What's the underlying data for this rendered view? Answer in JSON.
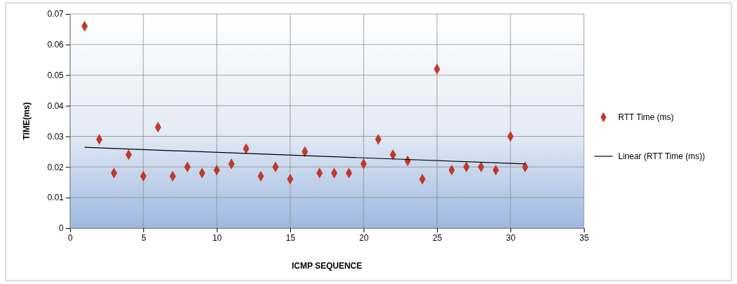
{
  "chart_data": {
    "type": "scatter",
    "xlabel": "ICMP SEQUENCE",
    "ylabel": "TIME(ms)",
    "xlim": [
      0,
      35
    ],
    "xticks": [
      0,
      5,
      10,
      15,
      20,
      25,
      30,
      35
    ],
    "ylim": [
      0,
      0.07
    ],
    "yticks": [
      0,
      0.01,
      0.02,
      0.03,
      0.04,
      0.05,
      0.06,
      0.07
    ],
    "grid": true,
    "legend": "right",
    "marker": "diamond",
    "series": [
      {
        "name": "RTT Time (ms)",
        "color": "#c0392b",
        "x": [
          1,
          2,
          3,
          4,
          5,
          6,
          7,
          8,
          9,
          10,
          11,
          12,
          13,
          14,
          15,
          16,
          17,
          18,
          19,
          20,
          21,
          22,
          23,
          24,
          25,
          26,
          27,
          28,
          29,
          30,
          31
        ],
        "values": [
          0.066,
          0.029,
          0.018,
          0.024,
          0.017,
          0.033,
          0.017,
          0.02,
          0.018,
          0.019,
          0.021,
          0.026,
          0.017,
          0.02,
          0.016,
          0.025,
          0.018,
          0.018,
          0.018,
          0.021,
          0.029,
          0.024,
          0.022,
          0.016,
          0.052,
          0.019,
          0.02,
          0.02,
          0.019,
          0.03,
          0.02
        ]
      },
      {
        "name": "Linear (RTT Time (ms))",
        "type": "line",
        "color": "#000000",
        "marker": "none",
        "x": [
          1,
          31
        ],
        "values": [
          0.0264,
          0.021
        ]
      }
    ]
  }
}
